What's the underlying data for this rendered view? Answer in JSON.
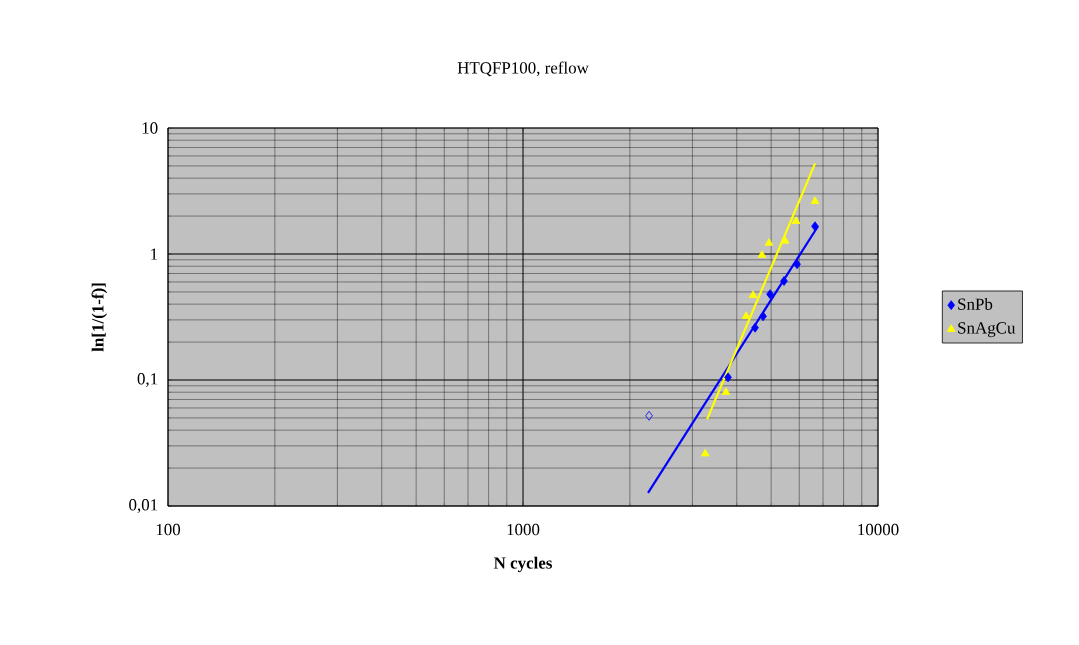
{
  "chart_data": {
    "type": "scatter",
    "title": "HTQFP100, reflow",
    "xlabel": "N cycles",
    "ylabel": "ln[1/(1-f)]",
    "log": "xy",
    "grid": true,
    "legend": "right",
    "xlim": [
      100,
      10000
    ],
    "xticks": [
      100,
      1000,
      10000
    ],
    "ylim": [
      0.01,
      10
    ],
    "yticks": [
      {
        "value": 0.01,
        "label": "0,01"
      },
      {
        "value": 0.1,
        "label": "0,1"
      },
      {
        "value": 1,
        "label": "1"
      },
      {
        "value": 10,
        "label": "10"
      }
    ],
    "series": [
      {
        "name": "SnPb",
        "color": "#0000ff",
        "marker": "diamond",
        "x": [
          3780,
          4505,
          4745,
          4965,
          5435,
          5915,
          6645
        ],
        "values": [
          0.105,
          0.26,
          0.32,
          0.48,
          0.61,
          0.83,
          1.66
        ]
      },
      {
        "name": "SnAgCu",
        "color": "#ffff00",
        "marker": "triangle",
        "x": [
          3260,
          3730,
          4250,
          4445,
          4710,
          4930,
          5470,
          5875,
          6645
        ],
        "values": [
          0.026,
          0.08,
          0.32,
          0.47,
          0.98,
          1.22,
          1.27,
          1.82,
          2.62
        ]
      },
      {
        "color": "#0000ff",
        "marker": "diamond",
        "x": [
          2265
        ],
        "values": [
          0.052
        ]
      },
      {
        "type": "line",
        "color": "#0000ff",
        "marker": "none",
        "x": [
          2250,
          6775
        ],
        "values": [
          0.0127,
          1.66
        ]
      },
      {
        "type": "line",
        "color": "#ffff00",
        "marker": "none",
        "x": [
          3300,
          6650
        ],
        "values": [
          0.0487,
          5.24
        ]
      }
    ]
  }
}
